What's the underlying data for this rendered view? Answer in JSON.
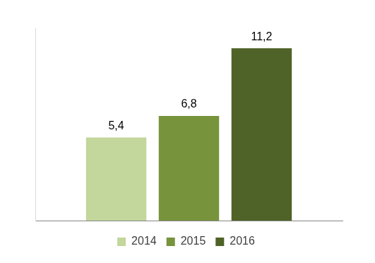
{
  "chart_data": {
    "type": "bar",
    "series": [
      {
        "name": "2014",
        "color": "#c3d69b",
        "values": [
          5.4
        ],
        "value_labels": [
          "5,4"
        ]
      },
      {
        "name": "2015",
        "color": "#77933c",
        "values": [
          6.8
        ],
        "value_labels": [
          "6,8"
        ]
      },
      {
        "name": "2016",
        "color": "#4f6228",
        "values": [
          11.2
        ],
        "value_labels": [
          "11,2"
        ]
      }
    ],
    "ylim": [
      0,
      12.5
    ],
    "yticks": [],
    "tick_labels": false,
    "grid": false,
    "legend": "bottom",
    "data_labels": true
  }
}
